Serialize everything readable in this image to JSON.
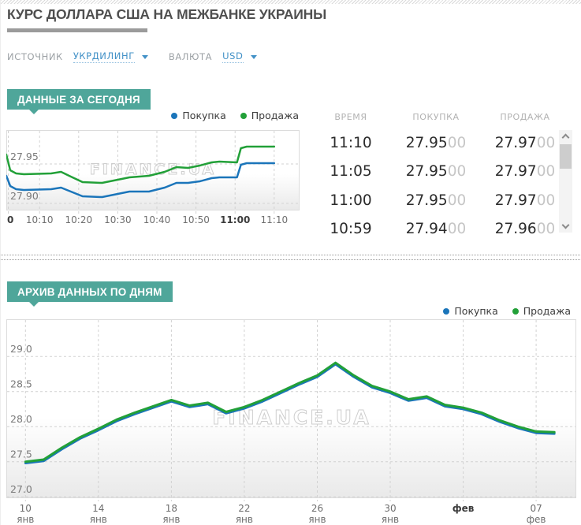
{
  "page": {
    "title": "КУРС ДОЛЛАРА США НА МЕЖБАНКЕ УКРАИНЫ"
  },
  "controls": {
    "source_label": "ИСТОЧНИК",
    "source_value": "УКРДИЛИНГ",
    "currency_label": "ВАЛЮТА",
    "currency_value": "USD"
  },
  "legend": {
    "buy": "Покупка",
    "sell": "Продажа"
  },
  "watermark": "FINANCE.UA",
  "colors": {
    "buy": "#1b75ba",
    "sell": "#22a038",
    "badge": "#4fa69a",
    "link": "#4291c7"
  },
  "today": {
    "badge": "ДАННЫЕ ЗА СЕГОДНЯ",
    "table": {
      "headers": [
        "ВРЕМЯ",
        "ПОКУПКА",
        "ПРОДАЖА"
      ],
      "rows": [
        {
          "time": "11:10",
          "buy": "27.95",
          "buy_frac": "00",
          "sell": "27.97",
          "sell_frac": "00"
        },
        {
          "time": "11:05",
          "buy": "27.95",
          "buy_frac": "00",
          "sell": "27.97",
          "sell_frac": "00"
        },
        {
          "time": "11:00",
          "buy": "27.95",
          "buy_frac": "00",
          "sell": "27.97",
          "sell_frac": "00"
        },
        {
          "time": "10:59",
          "buy": "27.94",
          "buy_frac": "00",
          "sell": "27.96",
          "sell_frac": "00"
        }
      ]
    }
  },
  "archive": {
    "badge": "АРХИВ ДАННЫХ ПО ДНЯМ"
  },
  "chart_data": [
    {
      "type": "line",
      "title": "ДАННЫЕ ЗА СЕГОДНЯ (интрадей)",
      "x_unit": "minutes since 10:00",
      "xlim": [
        1.5,
        76.5
      ],
      "ylim": [
        27.891,
        27.993
      ],
      "grid": "dashed",
      "legend_position": "top-right",
      "xticks": [
        {
          "v": 2,
          "l1": "0",
          "bold": true
        },
        {
          "v": 10,
          "l1": "10:10"
        },
        {
          "v": 20,
          "l1": "10:20"
        },
        {
          "v": 30,
          "l1": "10:30"
        },
        {
          "v": 40,
          "l1": "10:40"
        },
        {
          "v": 50,
          "l1": "10:50"
        },
        {
          "v": 60,
          "l1": "11:00",
          "bold": true
        },
        {
          "v": 70,
          "l1": "11:10"
        }
      ],
      "yticks": [
        {
          "v": 27.95,
          "label": "27.95"
        },
        {
          "v": 27.9,
          "label": "27.90"
        }
      ],
      "series": [
        {
          "name": "Покупка",
          "color": "#1b75ba",
          "points": [
            [
              1.5,
              27.935
            ],
            [
              2.5,
              27.922
            ],
            [
              4,
              27.918
            ],
            [
              6,
              27.917
            ],
            [
              13,
              27.918
            ],
            [
              15.5,
              27.92
            ],
            [
              18,
              27.915
            ],
            [
              21,
              27.909
            ],
            [
              26,
              27.908
            ],
            [
              30,
              27.912
            ],
            [
              33,
              27.915
            ],
            [
              38,
              27.915
            ],
            [
              42,
              27.92
            ],
            [
              45,
              27.926
            ],
            [
              48,
              27.926
            ],
            [
              51,
              27.928
            ],
            [
              54,
              27.932
            ],
            [
              56,
              27.933
            ],
            [
              60.5,
              27.933
            ],
            [
              61.5,
              27.949
            ],
            [
              63,
              27.951
            ],
            [
              70,
              27.951
            ]
          ]
        },
        {
          "name": "Продажа",
          "color": "#22a038",
          "points": [
            [
              1.5,
              27.962
            ],
            [
              2.5,
              27.942
            ],
            [
              4,
              27.938
            ],
            [
              6,
              27.937
            ],
            [
              13,
              27.938
            ],
            [
              15.5,
              27.94
            ],
            [
              18,
              27.934
            ],
            [
              21,
              27.927
            ],
            [
              26,
              27.926
            ],
            [
              30,
              27.93
            ],
            [
              33,
              27.933
            ],
            [
              38,
              27.935
            ],
            [
              42,
              27.94
            ],
            [
              45,
              27.946
            ],
            [
              48,
              27.945
            ],
            [
              51,
              27.948
            ],
            [
              54,
              27.952
            ],
            [
              56,
              27.953
            ],
            [
              60.5,
              27.952
            ],
            [
              61.5,
              27.97
            ],
            [
              63,
              27.972
            ],
            [
              70,
              27.972
            ]
          ]
        }
      ]
    },
    {
      "type": "line",
      "title": "АРХИВ ДАННЫХ ПО ДНЯМ",
      "x_unit": "days since Jan 10 (daily points, 10 янв — 08 фев)",
      "xlim": [
        -1.05,
        30.2
      ],
      "ylim": [
        26.98,
        29.53
      ],
      "grid": "dashed",
      "legend_position": "top-right",
      "xticks": [
        {
          "v": 0,
          "l1": "10",
          "l2": "янв"
        },
        {
          "v": 4,
          "l1": "14",
          "l2": "янв"
        },
        {
          "v": 8,
          "l1": "18",
          "l2": "янв"
        },
        {
          "v": 12,
          "l1": "22",
          "l2": "янв"
        },
        {
          "v": 16,
          "l1": "26",
          "l2": "янв"
        },
        {
          "v": 20,
          "l1": "30",
          "l2": "янв"
        },
        {
          "v": 24,
          "l1": "фев",
          "bold": true
        },
        {
          "v": 28,
          "l1": "07",
          "l2": "фев"
        }
      ],
      "yticks": [
        {
          "v": 29.0,
          "label": "29.0"
        },
        {
          "v": 28.5,
          "label": "28.5"
        },
        {
          "v": 28.0,
          "label": "28.0"
        },
        {
          "v": 27.5,
          "label": "27.5"
        },
        {
          "v": 27.0,
          "label": "27.0"
        }
      ],
      "series": [
        {
          "name": "Покупка",
          "color": "#1b75ba",
          "points": [
            [
              0,
              27.48
            ],
            [
              1,
              27.51
            ],
            [
              2,
              27.68
            ],
            [
              3,
              27.83
            ],
            [
              4,
              27.95
            ],
            [
              5,
              28.08
            ],
            [
              6,
              28.18
            ],
            [
              7,
              28.27
            ],
            [
              8,
              28.36
            ],
            [
              9,
              28.28
            ],
            [
              10,
              28.32
            ],
            [
              11,
              28.19
            ],
            [
              12,
              28.26
            ],
            [
              13,
              28.36
            ],
            [
              14,
              28.48
            ],
            [
              15,
              28.6
            ],
            [
              16,
              28.71
            ],
            [
              17,
              28.89
            ],
            [
              18,
              28.71
            ],
            [
              19,
              28.56
            ],
            [
              20,
              28.48
            ],
            [
              21,
              28.37
            ],
            [
              22,
              28.41
            ],
            [
              23,
              28.29
            ],
            [
              24,
              28.25
            ],
            [
              25,
              28.18
            ],
            [
              26,
              28.07
            ],
            [
              27,
              27.98
            ],
            [
              28,
              27.91
            ],
            [
              29,
              27.9
            ]
          ]
        },
        {
          "name": "Продажа",
          "color": "#22a038",
          "points": [
            [
              0,
              27.5
            ],
            [
              1,
              27.53
            ],
            [
              2,
              27.7
            ],
            [
              3,
              27.85
            ],
            [
              4,
              27.97
            ],
            [
              5,
              28.1
            ],
            [
              6,
              28.2
            ],
            [
              7,
              28.29
            ],
            [
              8,
              28.38
            ],
            [
              9,
              28.3
            ],
            [
              10,
              28.34
            ],
            [
              11,
              28.21
            ],
            [
              12,
              28.28
            ],
            [
              13,
              28.38
            ],
            [
              14,
              28.5
            ],
            [
              15,
              28.62
            ],
            [
              16,
              28.73
            ],
            [
              17,
              28.91
            ],
            [
              18,
              28.73
            ],
            [
              19,
              28.58
            ],
            [
              20,
              28.5
            ],
            [
              21,
              28.39
            ],
            [
              22,
              28.43
            ],
            [
              23,
              28.31
            ],
            [
              24,
              28.27
            ],
            [
              25,
              28.2
            ],
            [
              26,
              28.09
            ],
            [
              27,
              28.0
            ],
            [
              28,
              27.93
            ],
            [
              29,
              27.92
            ]
          ]
        }
      ]
    }
  ]
}
